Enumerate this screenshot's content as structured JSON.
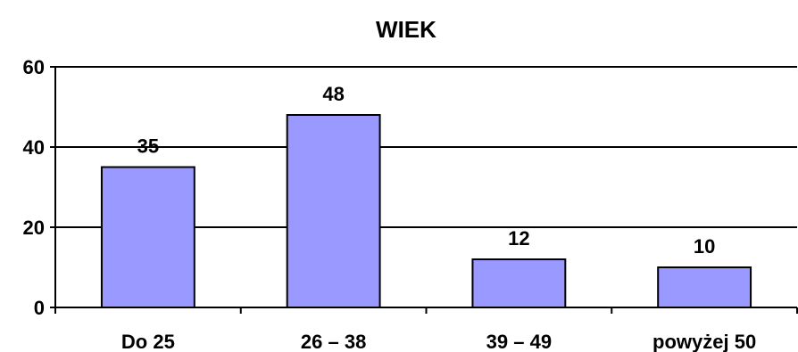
{
  "chart_data": {
    "type": "bar",
    "title": "WIEK",
    "xlabel": "",
    "ylabel": "",
    "categories": [
      "Do 25",
      "26 – 38",
      "39 – 49",
      "powyżej  50"
    ],
    "values": [
      35,
      48,
      12,
      10
    ],
    "data_labels": [
      "35",
      "48",
      "12",
      "10"
    ],
    "ylim": [
      0,
      60
    ],
    "yticks": [
      0,
      20,
      40,
      60
    ],
    "ytick_labels": [
      "0",
      "20",
      "40",
      "60"
    ],
    "grid": true,
    "legend": "none",
    "bar_color": "#9999ff",
    "bar_outline": "#000000"
  }
}
